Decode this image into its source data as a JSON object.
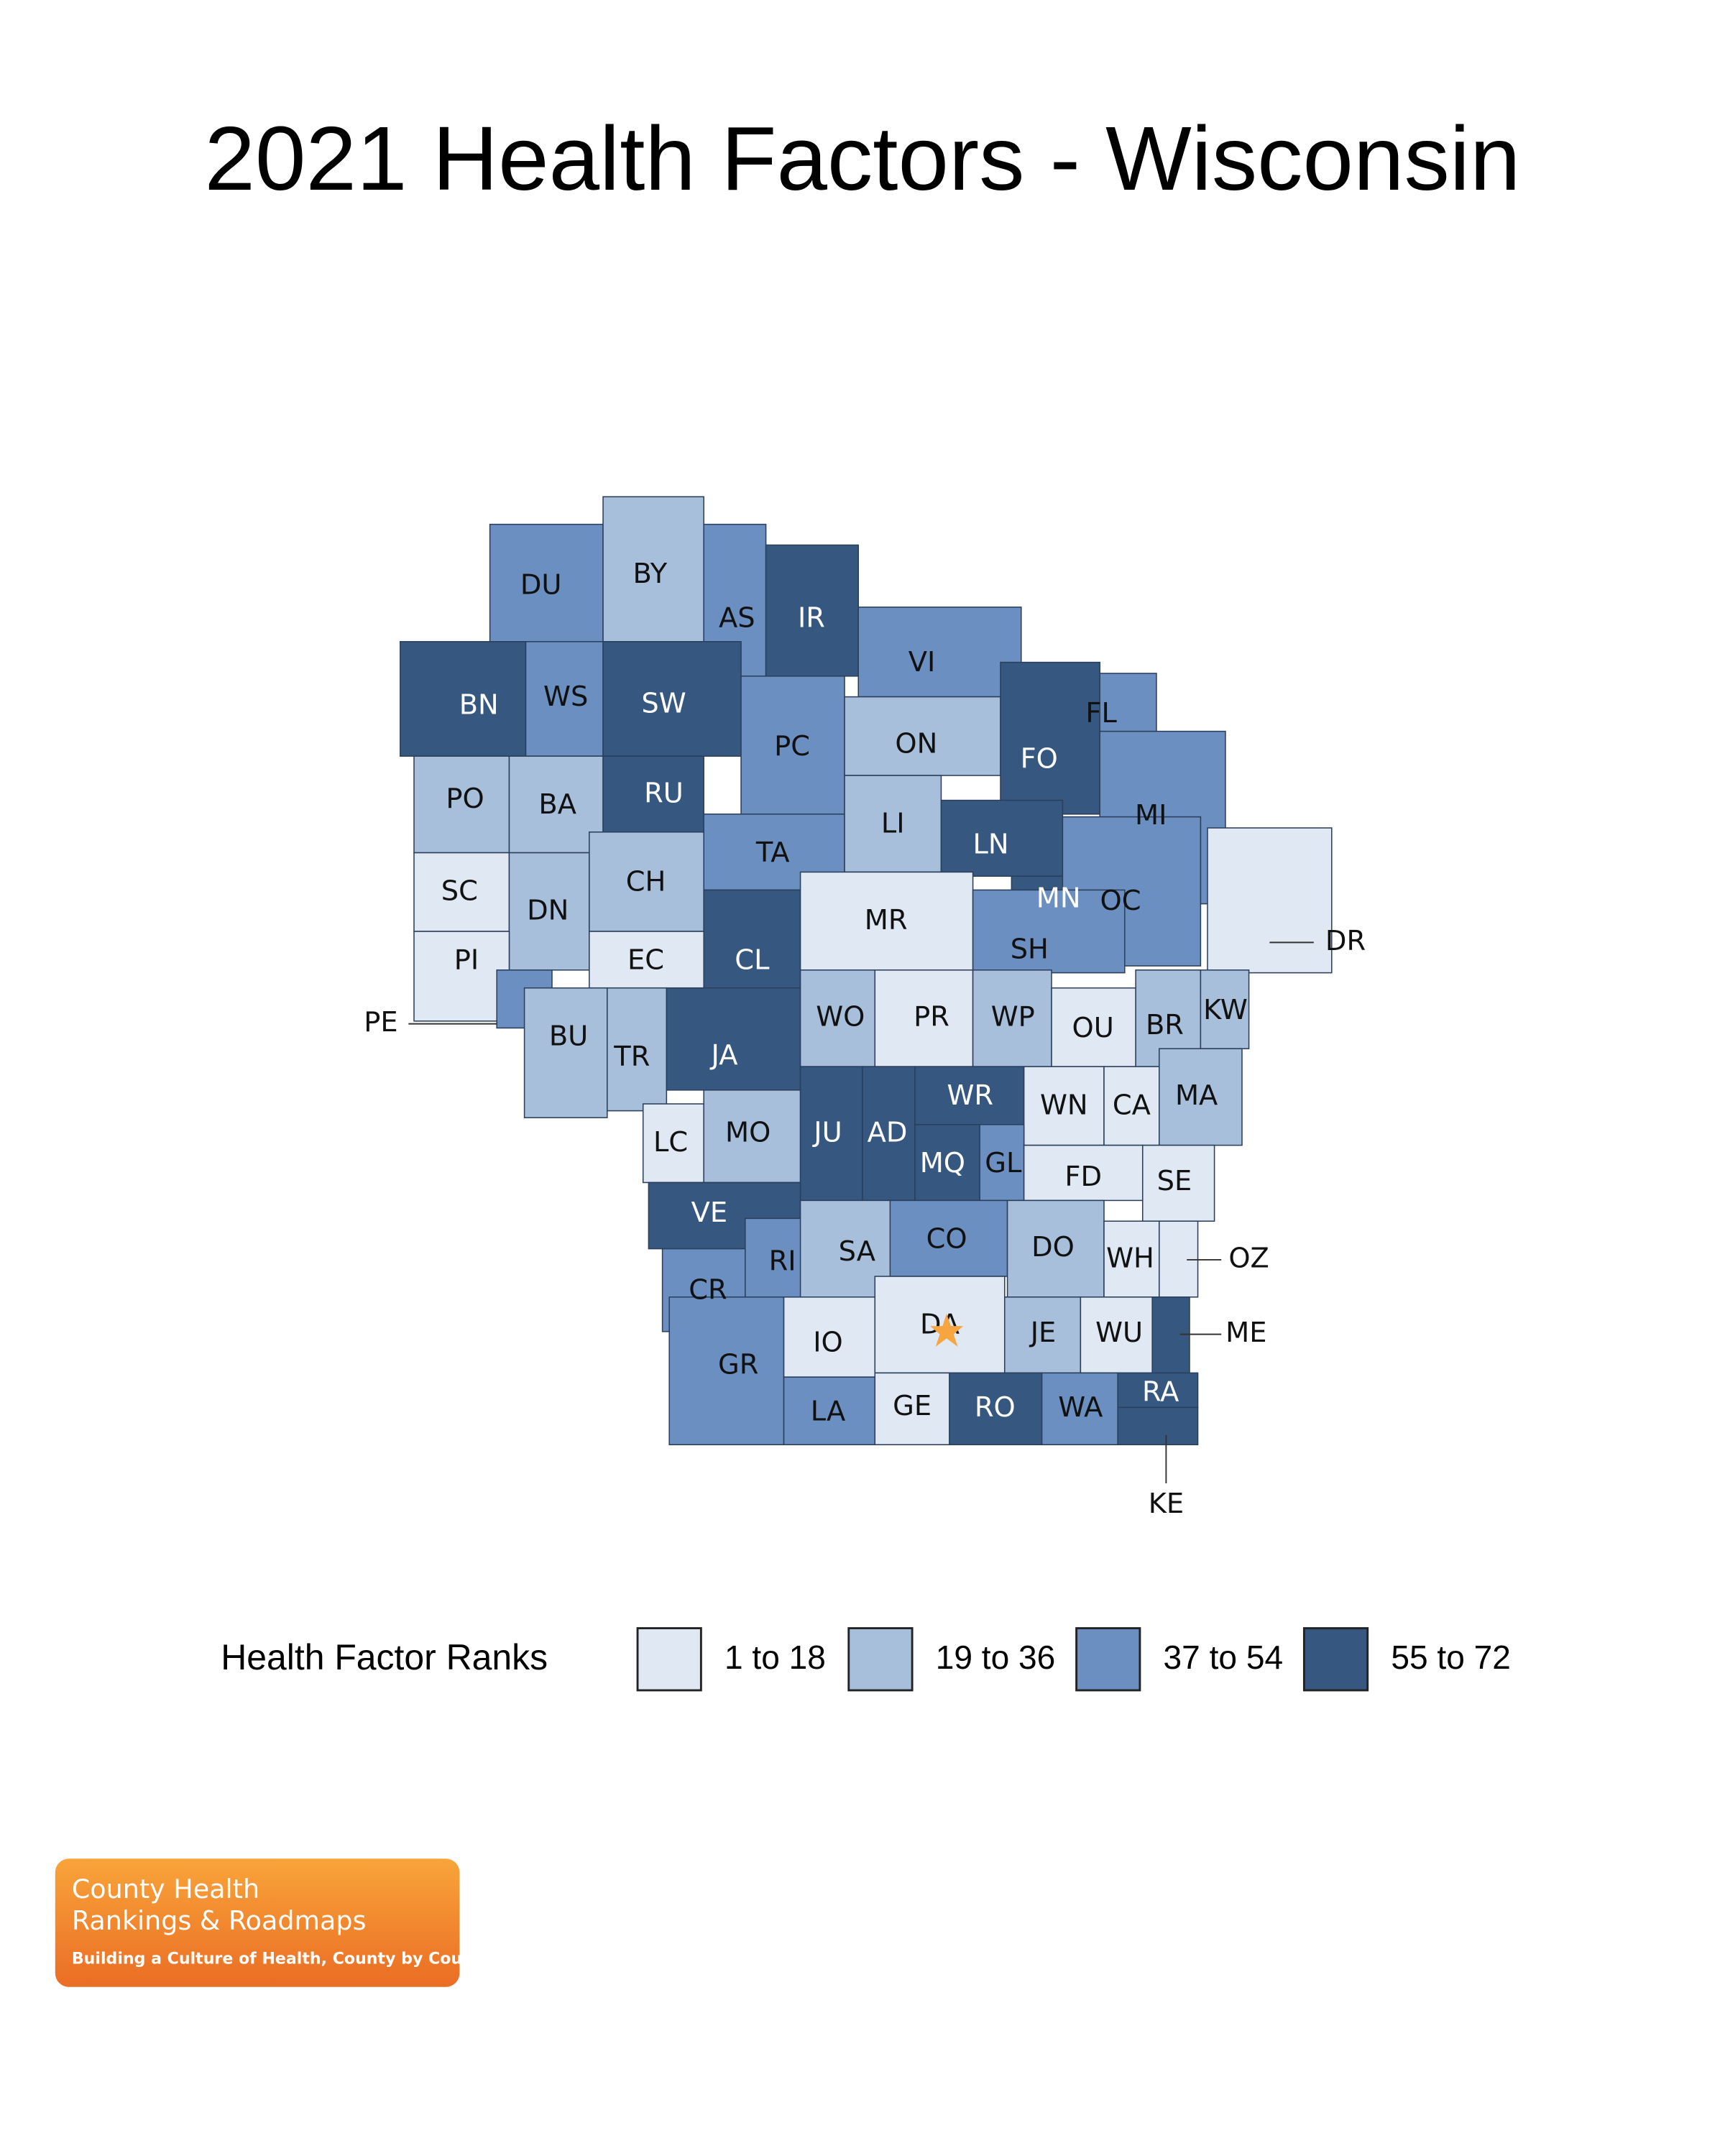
{
  "title": "2021 Health Factors - Wisconsin",
  "legend": {
    "title": "Health Factor Ranks",
    "classes": [
      {
        "label": "1 to 18",
        "color": "#dfe8f3"
      },
      {
        "label": "19 to 36",
        "color": "#a8bfdb"
      },
      {
        "label": "37 to 54",
        "color": "#6a8fc0"
      },
      {
        "label": "55 to 72",
        "color": "#36577f"
      }
    ]
  },
  "counties": [
    {
      "code": "DU",
      "class": 2
    },
    {
      "code": "BY",
      "class": 1
    },
    {
      "code": "AS",
      "class": 2
    },
    {
      "code": "IR",
      "class": 3
    },
    {
      "code": "VI",
      "class": 2
    },
    {
      "code": "FL",
      "class": 2
    },
    {
      "code": "BN",
      "class": 3
    },
    {
      "code": "WS",
      "class": 2
    },
    {
      "code": "SW",
      "class": 3
    },
    {
      "code": "PC",
      "class": 2
    },
    {
      "code": "ON",
      "class": 1
    },
    {
      "code": "FO",
      "class": 3
    },
    {
      "code": "MI",
      "class": 2
    },
    {
      "code": "PO",
      "class": 1
    },
    {
      "code": "BA",
      "class": 1
    },
    {
      "code": "RU",
      "class": 3
    },
    {
      "code": "TA",
      "class": 2
    },
    {
      "code": "LI",
      "class": 1
    },
    {
      "code": "LN",
      "class": 3
    },
    {
      "code": "MN",
      "class": 3
    },
    {
      "code": "OC",
      "class": 2
    },
    {
      "code": "SC",
      "class": 0
    },
    {
      "code": "DN",
      "class": 1
    },
    {
      "code": "CH",
      "class": 1
    },
    {
      "code": "CL",
      "class": 3
    },
    {
      "code": "MR",
      "class": 0
    },
    {
      "code": "SH",
      "class": 2
    },
    {
      "code": "DR",
      "class": 0
    },
    {
      "code": "PI",
      "class": 0
    },
    {
      "code": "EC",
      "class": 0
    },
    {
      "code": "PE",
      "class": 2
    },
    {
      "code": "BU",
      "class": 1
    },
    {
      "code": "TR",
      "class": 1
    },
    {
      "code": "JA",
      "class": 3
    },
    {
      "code": "WO",
      "class": 1
    },
    {
      "code": "PR",
      "class": 0
    },
    {
      "code": "WP",
      "class": 1
    },
    {
      "code": "OU",
      "class": 0
    },
    {
      "code": "BR",
      "class": 1
    },
    {
      "code": "KW",
      "class": 1
    },
    {
      "code": "LC",
      "class": 0
    },
    {
      "code": "MO",
      "class": 1
    },
    {
      "code": "JU",
      "class": 3
    },
    {
      "code": "AD",
      "class": 3
    },
    {
      "code": "WR",
      "class": 3
    },
    {
      "code": "WN",
      "class": 0
    },
    {
      "code": "CA",
      "class": 0
    },
    {
      "code": "MA",
      "class": 1
    },
    {
      "code": "MQ",
      "class": 3
    },
    {
      "code": "GL",
      "class": 2
    },
    {
      "code": "FD",
      "class": 0
    },
    {
      "code": "SE",
      "class": 0
    },
    {
      "code": "VE",
      "class": 3
    },
    {
      "code": "CR",
      "class": 2
    },
    {
      "code": "RI",
      "class": 2
    },
    {
      "code": "SA",
      "class": 1
    },
    {
      "code": "CO",
      "class": 2
    },
    {
      "code": "DO",
      "class": 1
    },
    {
      "code": "WH",
      "class": 0
    },
    {
      "code": "OZ",
      "class": 0
    },
    {
      "code": "GR",
      "class": 2
    },
    {
      "code": "IO",
      "class": 0
    },
    {
      "code": "DA",
      "class": 0
    },
    {
      "code": "JE",
      "class": 1
    },
    {
      "code": "WU",
      "class": 0
    },
    {
      "code": "ME",
      "class": 3
    },
    {
      "code": "LA",
      "class": 2
    },
    {
      "code": "GE",
      "class": 0
    },
    {
      "code": "RO",
      "class": 3
    },
    {
      "code": "WA",
      "class": 2
    },
    {
      "code": "RA",
      "class": 3
    },
    {
      "code": "KE",
      "class": 3
    }
  ],
  "logo": {
    "line1": "County Health",
    "line2": "Rankings & Roadmaps",
    "tagline": "Building a Culture of Health, County by County"
  }
}
